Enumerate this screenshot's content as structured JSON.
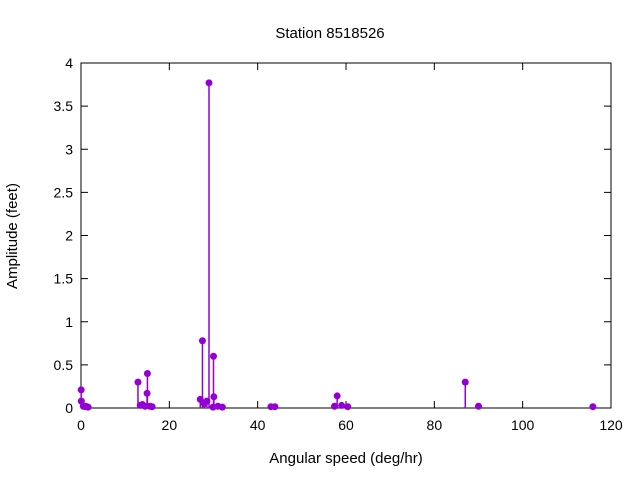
{
  "chart_data": {
    "type": "scatter",
    "style": "impulses+points (stem plot)",
    "title": "Station 8518526",
    "xlabel": "Angular speed (deg/hr)",
    "ylabel": "Amplitude (feet)",
    "xlim": [
      0,
      120
    ],
    "ylim": [
      0,
      4
    ],
    "grid": false,
    "legend": "none",
    "accent_color": "#9400d3",
    "x_ticks": [
      {
        "label": "0",
        "value": 0
      },
      {
        "label": "20",
        "value": 20
      },
      {
        "label": "40",
        "value": 40
      },
      {
        "label": "60",
        "value": 60
      },
      {
        "label": "80",
        "value": 80
      },
      {
        "label": "100",
        "value": 100
      },
      {
        "label": "120",
        "value": 120
      }
    ],
    "y_ticks": [
      {
        "label": "0",
        "value": 0
      },
      {
        "label": "0.5",
        "value": 0.5
      },
      {
        "label": "1",
        "value": 1
      },
      {
        "label": "1.5",
        "value": 1.5
      },
      {
        "label": "2",
        "value": 2
      },
      {
        "label": "2.5",
        "value": 2.5
      },
      {
        "label": "3",
        "value": 3
      },
      {
        "label": "3.5",
        "value": 3.5
      },
      {
        "label": "4",
        "value": 4
      }
    ],
    "points": [
      [
        0.04,
        0.21
      ],
      [
        0.08,
        0.08
      ],
      [
        0.54,
        0.02
      ],
      [
        1.02,
        0.015
      ],
      [
        1.1,
        0.02
      ],
      [
        1.6,
        0.01
      ],
      [
        12.9,
        0.3
      ],
      [
        13.4,
        0.03
      ],
      [
        13.9,
        0.04
      ],
      [
        14.5,
        0.02
      ],
      [
        14.96,
        0.17
      ],
      [
        15.04,
        0.4
      ],
      [
        15.6,
        0.02
      ],
      [
        16.1,
        0.015
      ],
      [
        27.0,
        0.1
      ],
      [
        27.5,
        0.78
      ],
      [
        27.9,
        0.05
      ],
      [
        28.5,
        0.08
      ],
      [
        28.98,
        3.77
      ],
      [
        29.9,
        0.01
      ],
      [
        30.0,
        0.6
      ],
      [
        30.08,
        0.13
      ],
      [
        31.0,
        0.02
      ],
      [
        32.0,
        0.01
      ],
      [
        43.0,
        0.015
      ],
      [
        43.9,
        0.015
      ],
      [
        57.4,
        0.02
      ],
      [
        58.0,
        0.14
      ],
      [
        59.0,
        0.03
      ],
      [
        60.4,
        0.015
      ],
      [
        87.0,
        0.3
      ],
      [
        90.0,
        0.02
      ],
      [
        115.9,
        0.015
      ]
    ]
  }
}
